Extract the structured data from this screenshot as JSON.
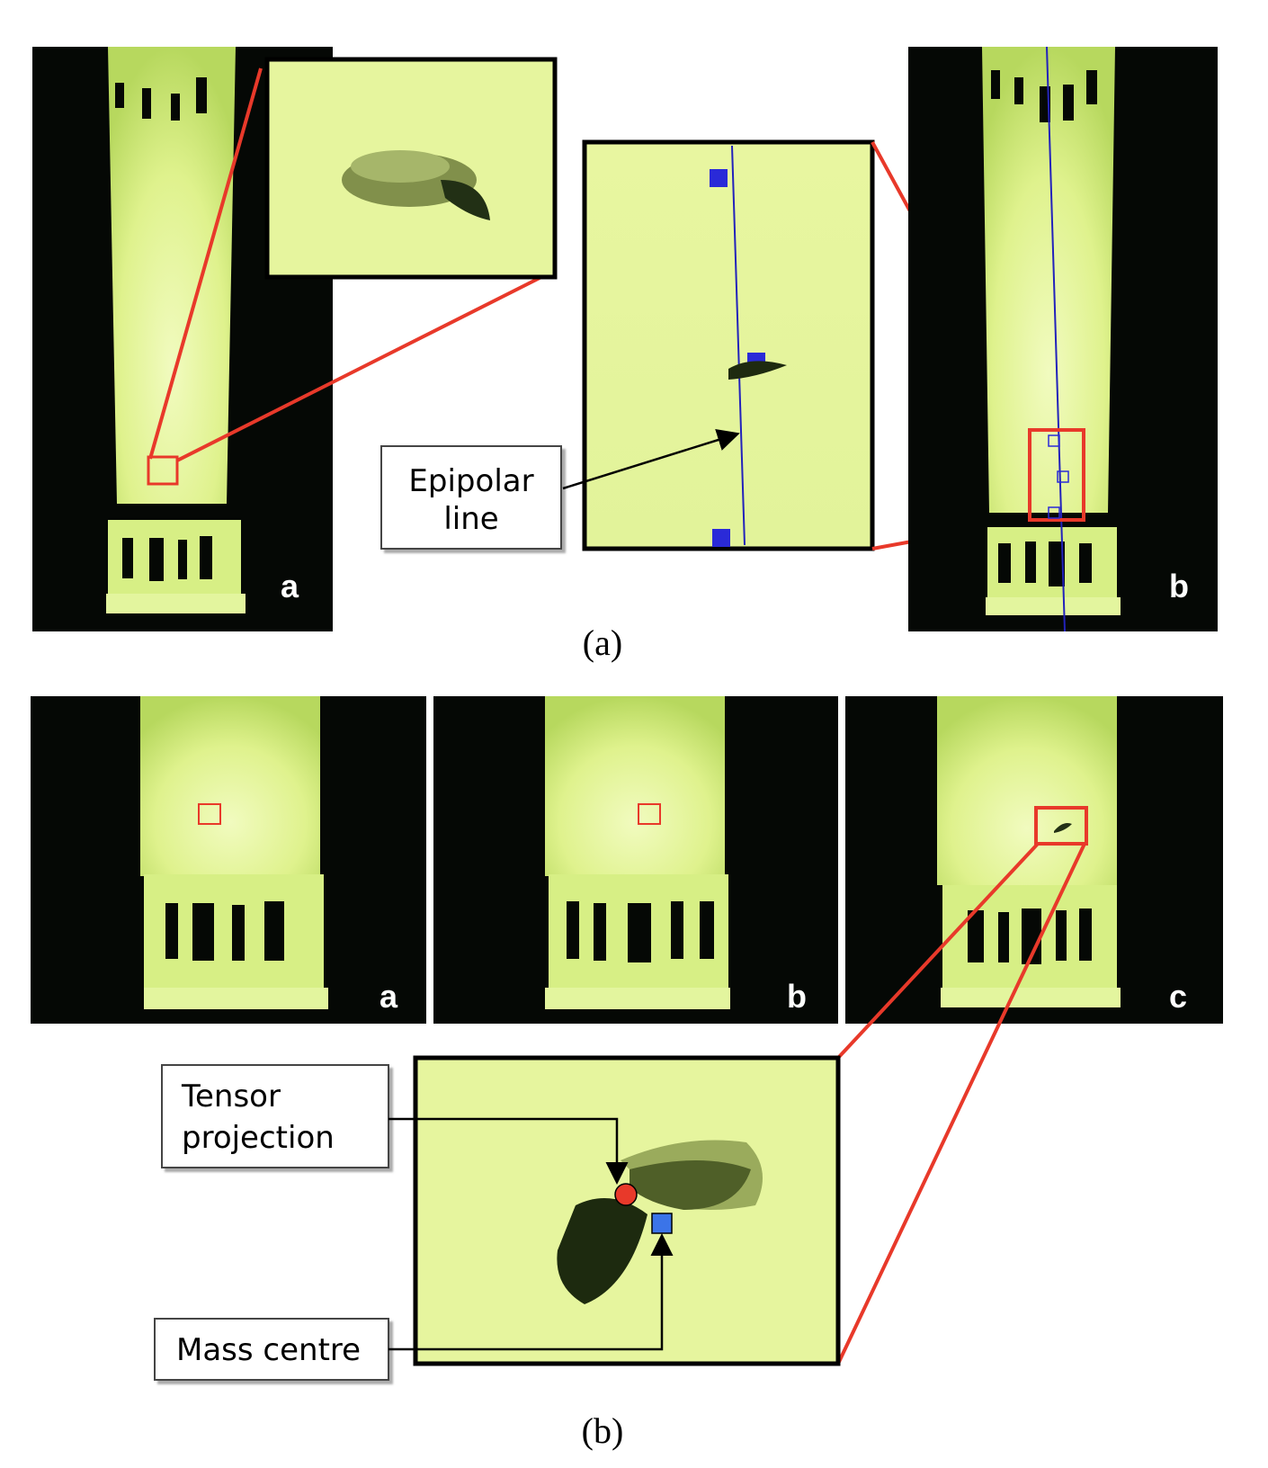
{
  "panel_a": {
    "label_left": "a",
    "label_right": "b",
    "callout_text_line1": "Epipolar",
    "callout_text_line2": "line",
    "caption": "(a)"
  },
  "panel_b": {
    "label_a": "a",
    "label_b": "b",
    "label_c": "c",
    "callout_tensor_line1": "Tensor",
    "callout_tensor_line2": "projection",
    "callout_mass": "Mass centre",
    "caption": "(b)"
  },
  "colors": {
    "background_light": "#e9f7a3",
    "tube_glow": "#dff58f",
    "dark": "#050805",
    "highlight_red": "#e8392a",
    "marker_blue": "#2a5bd7",
    "epipolar_blue": "#2222bb"
  }
}
